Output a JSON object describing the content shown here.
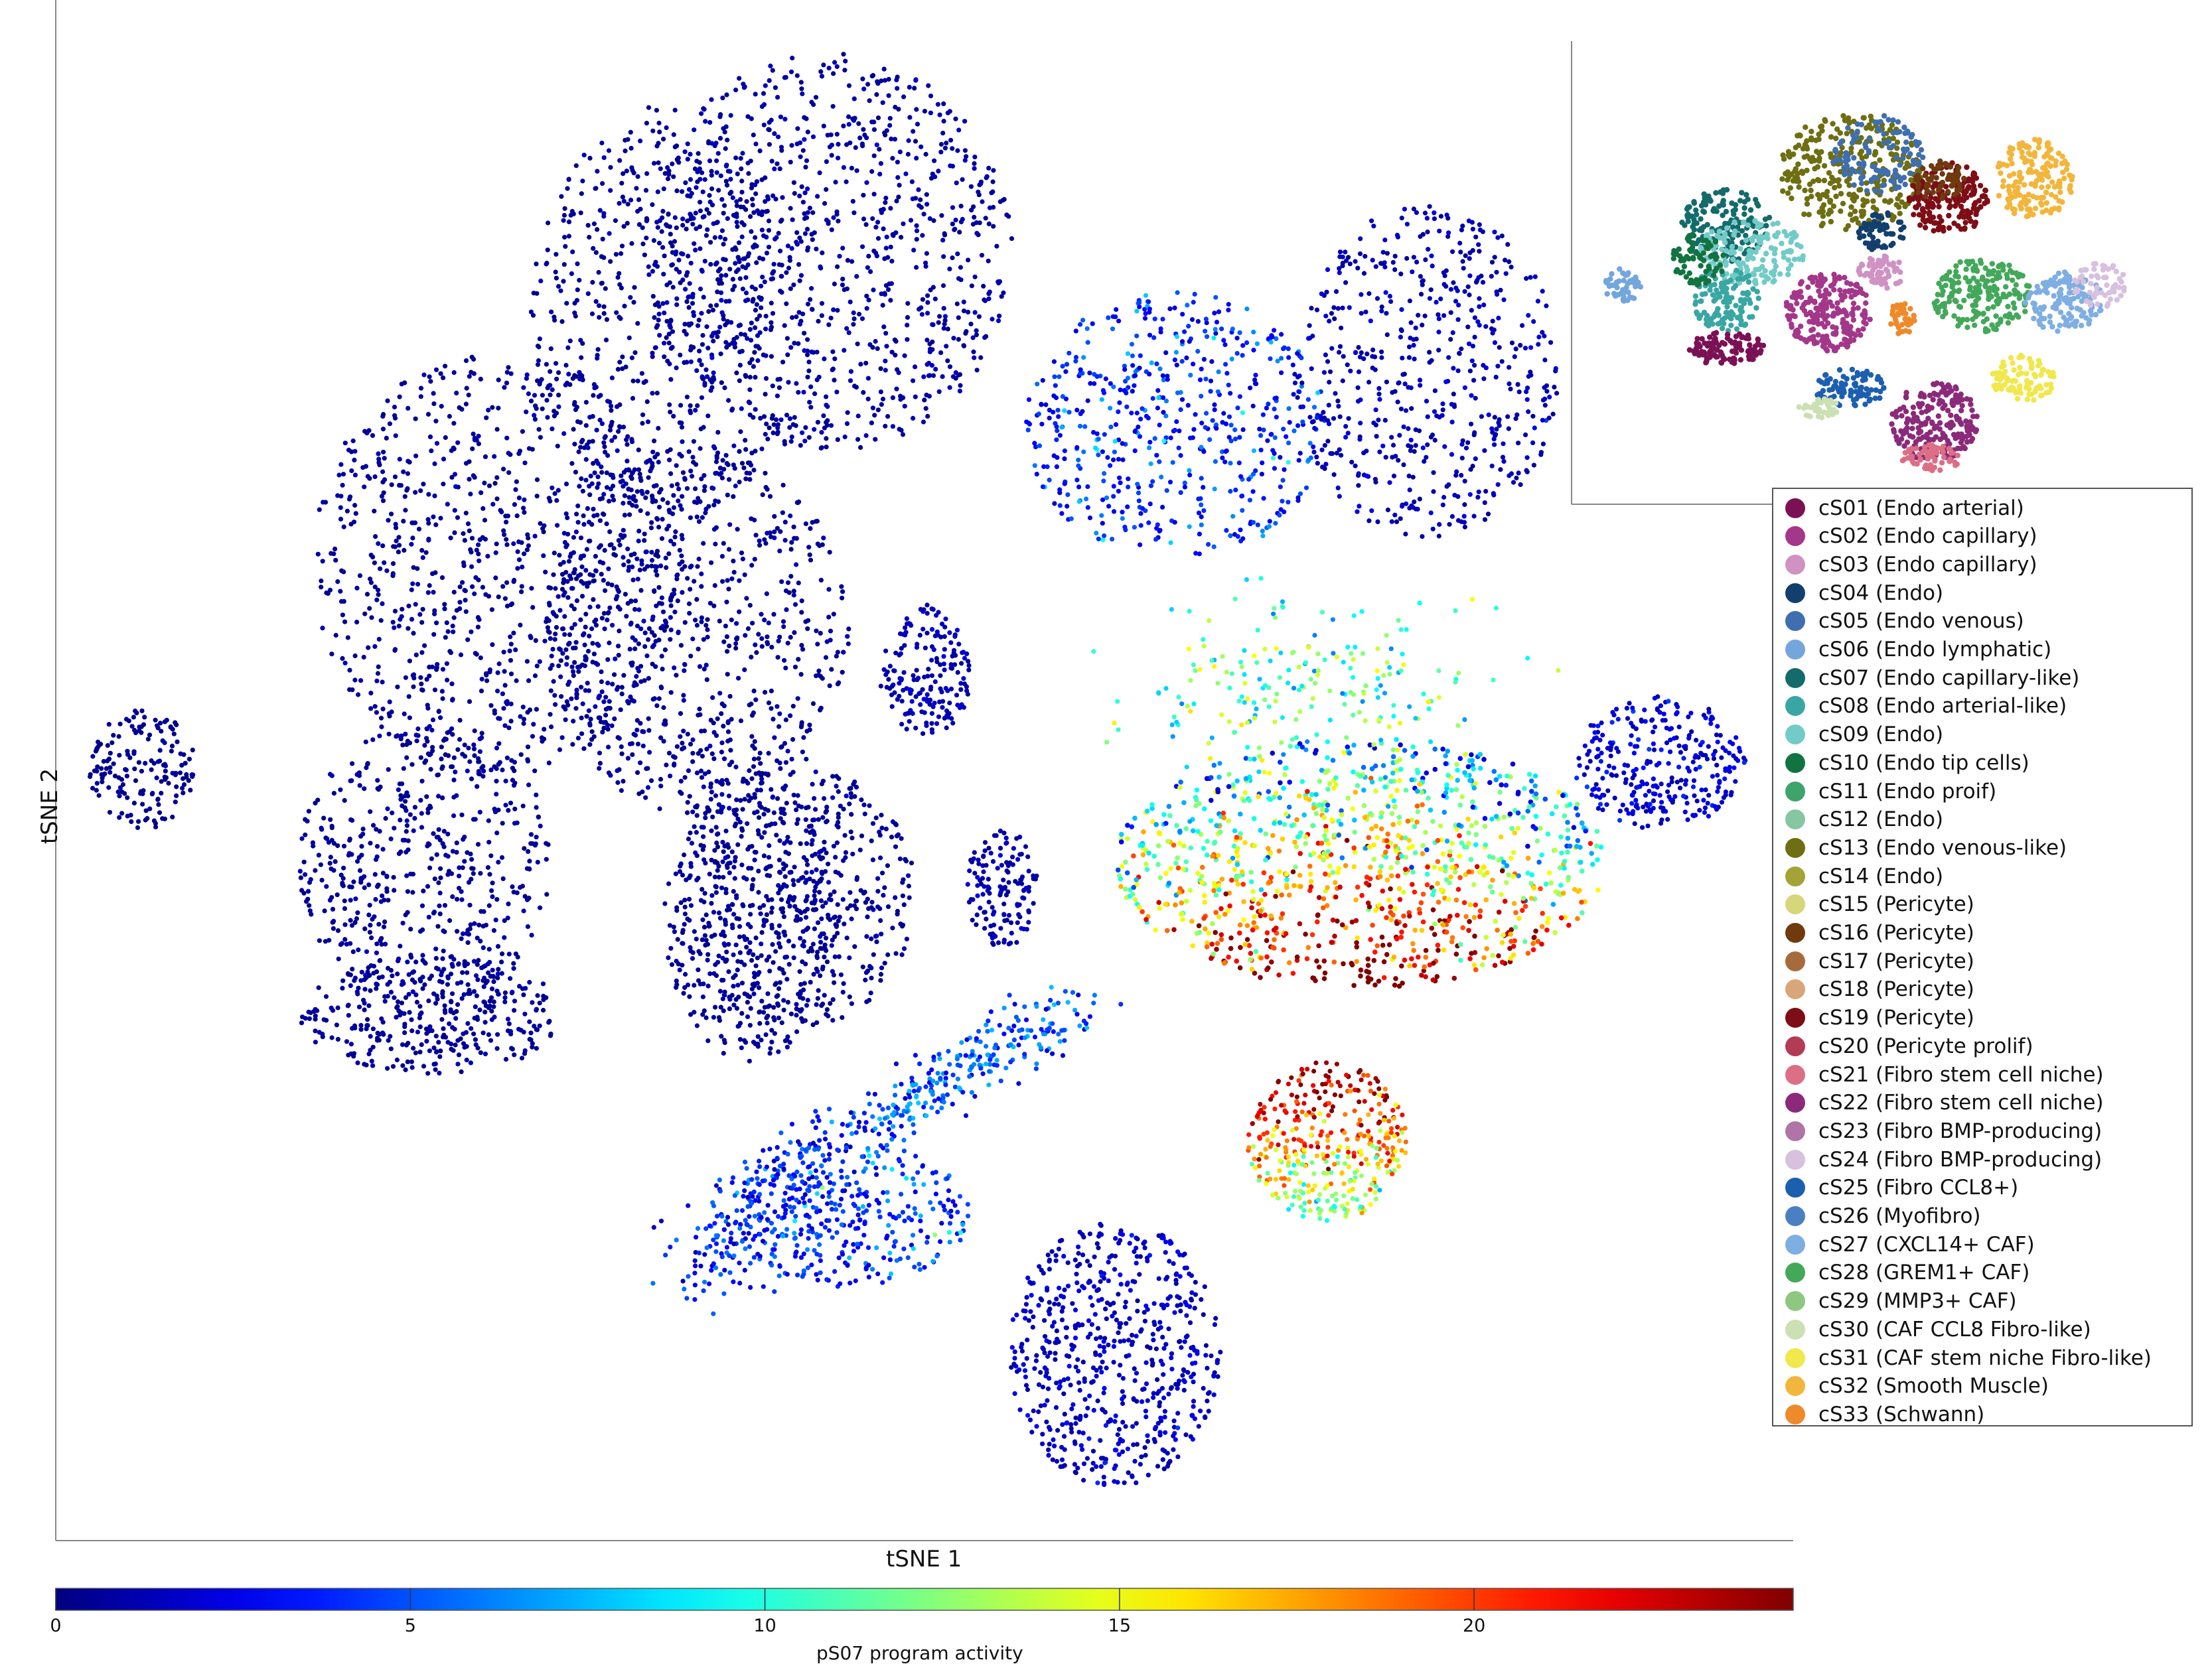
{
  "chart_data": {
    "type": "scatter",
    "title": "",
    "xlabel": "tSNE 1",
    "ylabel": "tSNE 2",
    "colorbar": {
      "label": "pS07 program activity",
      "ticks": [
        0,
        5,
        10,
        15,
        20
      ],
      "range": [
        0,
        24.5
      ],
      "colormap": "jet"
    },
    "series": [
      {
        "name": "points",
        "note_range": "0-24.5"
      }
    ],
    "inset": {
      "type": "scatter",
      "legend_placement": "right"
    },
    "legend": [
      {
        "label": "cS01 (Endo arterial)",
        "color": "#7b1155"
      },
      {
        "label": "cS02 (Endo capillary)",
        "color": "#a3378a"
      },
      {
        "label": "cS03 (Endo capillary)",
        "color": "#cf92c3"
      },
      {
        "label": "cS04 (Endo)",
        "color": "#123f6e"
      },
      {
        "label": "cS05 (Endo venous)",
        "color": "#3f6fae"
      },
      {
        "label": "cS06 (Endo lymphatic)",
        "color": "#74a6de"
      },
      {
        "label": "cS07 (Endo capillary-like)",
        "color": "#146b6b"
      },
      {
        "label": "cS08 (Endo arterial-like)",
        "color": "#3aa6a4"
      },
      {
        "label": "cS09 (Endo)",
        "color": "#72cbc7"
      },
      {
        "label": "cS10 (Endo tip cells)",
        "color": "#117440"
      },
      {
        "label": "cS11 (Endo proif)",
        "color": "#3fa36c"
      },
      {
        "label": "cS12 (Endo)",
        "color": "#86c6a0"
      },
      {
        "label": "cS13 (Endo venous-like)",
        "color": "#6e6e12"
      },
      {
        "label": "cS14 (Endo)",
        "color": "#a3a338"
      },
      {
        "label": "cS15 (Pericyte)",
        "color": "#d6d67a"
      },
      {
        "label": "cS16 (Pericyte)",
        "color": "#6e3a0e"
      },
      {
        "label": "cS17 (Pericyte)",
        "color": "#a66b3c"
      },
      {
        "label": "cS18 (Pericyte)",
        "color": "#d9a679"
      },
      {
        "label": "cS19 (Pericyte)",
        "color": "#7d0e16"
      },
      {
        "label": "cS20 (Pericyte prolif)",
        "color": "#b23b56"
      },
      {
        "label": "cS21 (Fibro stem cell niche)",
        "color": "#dc6e86"
      },
      {
        "label": "cS22 (Fibro stem cell niche)",
        "color": "#8b2a7a"
      },
      {
        "label": "cS23 (Fibro BMP-producing)",
        "color": "#b174a8"
      },
      {
        "label": "cS24 (Fibro BMP-producing)",
        "color": "#d8c0df"
      },
      {
        "label": "cS25 (Fibro CCL8+)",
        "color": "#1c5fb0"
      },
      {
        "label": "cS26 (Myofibro)",
        "color": "#4a80c2"
      },
      {
        "label": "cS27 (CXCL14+ CAF)",
        "color": "#7eaee2"
      },
      {
        "label": "cS28 (GREM1+ CAF)",
        "color": "#44a85a"
      },
      {
        "label": "cS29 (MMP3+ CAF)",
        "color": "#8dc782"
      },
      {
        "label": "cS30 (CAF CCL8 Fibro-like)",
        "color": "#cbe0b3"
      },
      {
        "label": "cS31 (CAF stem niche Fibro-like)",
        "color": "#f0e84c"
      },
      {
        "label": "cS32 (Smooth Muscle)",
        "color": "#f2b63c"
      },
      {
        "label": "cS33 (Schwann)",
        "color": "#ee8a2a"
      }
    ]
  }
}
